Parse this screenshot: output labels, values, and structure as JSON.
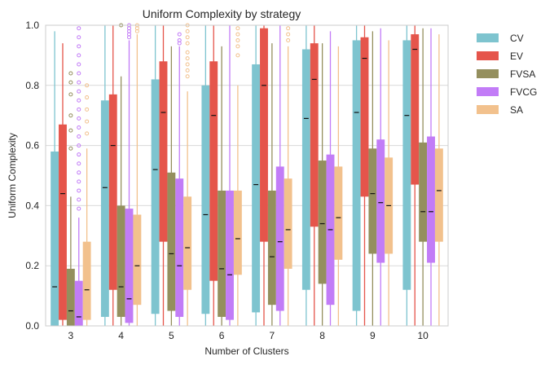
{
  "chart_data": {
    "type": "box",
    "title": "Uniform Complexity by strategy",
    "xlabel": "Number of Clusters",
    "ylabel": "Uniform Complexity",
    "ylim": [
      0,
      1
    ],
    "yticks": [
      "0.0",
      "0.2",
      "0.4",
      "0.6",
      "0.8",
      "1.0"
    ],
    "grid": true,
    "legend_position": "outside-right-top",
    "categories": [
      "3",
      "4",
      "5",
      "6",
      "7",
      "8",
      "9",
      "10"
    ],
    "series": [
      {
        "name": "CV",
        "color": "#7ec4cf",
        "boxes": [
          {
            "q1": 0.0,
            "median": 0.13,
            "q3": 0.58,
            "wlo": 0.0,
            "whi": 0.98,
            "outliers": []
          },
          {
            "q1": 0.03,
            "median": 0.46,
            "q3": 0.75,
            "wlo": 0.0,
            "whi": 1.0,
            "outliers": []
          },
          {
            "q1": 0.04,
            "median": 0.52,
            "q3": 0.82,
            "wlo": 0.0,
            "whi": 1.0,
            "outliers": []
          },
          {
            "q1": 0.04,
            "median": 0.37,
            "q3": 0.8,
            "wlo": 0.0,
            "whi": 1.0,
            "outliers": []
          },
          {
            "q1": 0.045,
            "median": 0.47,
            "q3": 0.87,
            "wlo": 0.0,
            "whi": 1.0,
            "outliers": []
          },
          {
            "q1": 0.12,
            "median": 0.69,
            "q3": 0.92,
            "wlo": 0.0,
            "whi": 1.0,
            "outliers": []
          },
          {
            "q1": 0.05,
            "median": 0.71,
            "q3": 0.95,
            "wlo": 0.0,
            "whi": 1.0,
            "outliers": []
          },
          {
            "q1": 0.12,
            "median": 0.7,
            "q3": 0.95,
            "wlo": 0.0,
            "whi": 1.0,
            "outliers": []
          }
        ]
      },
      {
        "name": "EV",
        "color": "#e5554b",
        "boxes": [
          {
            "q1": 0.02,
            "median": 0.44,
            "q3": 0.67,
            "wlo": 0.0,
            "whi": 0.94,
            "outliers": []
          },
          {
            "q1": 0.12,
            "median": 0.6,
            "q3": 0.77,
            "wlo": 0.0,
            "whi": 1.0,
            "outliers": []
          },
          {
            "q1": 0.28,
            "median": 0.71,
            "q3": 0.88,
            "wlo": 0.0,
            "whi": 1.0,
            "outliers": []
          },
          {
            "q1": 0.15,
            "median": 0.7,
            "q3": 0.88,
            "wlo": 0.0,
            "whi": 1.0,
            "outliers": []
          },
          {
            "q1": 0.28,
            "median": 0.8,
            "q3": 0.99,
            "wlo": 0.0,
            "whi": 1.0,
            "outliers": []
          },
          {
            "q1": 0.33,
            "median": 0.82,
            "q3": 0.94,
            "wlo": 0.0,
            "whi": 1.0,
            "outliers": []
          },
          {
            "q1": 0.43,
            "median": 0.89,
            "q3": 0.96,
            "wlo": 0.0,
            "whi": 1.0,
            "outliers": []
          },
          {
            "q1": 0.47,
            "median": 0.92,
            "q3": 0.97,
            "wlo": 0.0,
            "whi": 1.0,
            "outliers": []
          }
        ]
      },
      {
        "name": "FVSA",
        "color": "#948f5e",
        "boxes": [
          {
            "q1": 0.0,
            "median": 0.05,
            "q3": 0.19,
            "wlo": 0.0,
            "whi": 0.43,
            "outliers": [
              0.59,
              0.65,
              0.7,
              0.77,
              0.81,
              0.84
            ]
          },
          {
            "q1": 0.03,
            "median": 0.13,
            "q3": 0.4,
            "wlo": 0.0,
            "whi": 0.83,
            "outliers": [
              1.0
            ]
          },
          {
            "q1": 0.05,
            "median": 0.24,
            "q3": 0.51,
            "wlo": 0.0,
            "whi": 0.93,
            "outliers": []
          },
          {
            "q1": 0.03,
            "median": 0.19,
            "q3": 0.45,
            "wlo": 0.0,
            "whi": 0.93,
            "outliers": []
          },
          {
            "q1": 0.07,
            "median": 0.23,
            "q3": 0.45,
            "wlo": 0.0,
            "whi": 0.94,
            "outliers": []
          },
          {
            "q1": 0.14,
            "median": 0.34,
            "q3": 0.55,
            "wlo": 0.0,
            "whi": 0.94,
            "outliers": []
          },
          {
            "q1": 0.24,
            "median": 0.44,
            "q3": 0.59,
            "wlo": 0.0,
            "whi": 0.98,
            "outliers": []
          },
          {
            "q1": 0.28,
            "median": 0.38,
            "q3": 0.61,
            "wlo": 0.0,
            "whi": 0.99,
            "outliers": []
          }
        ]
      },
      {
        "name": "FVCG",
        "color": "#c27cf7",
        "boxes": [
          {
            "q1": 0.0,
            "median": 0.03,
            "q3": 0.15,
            "wlo": 0.0,
            "whi": 0.36,
            "outliers": [
              0.39,
              0.42,
              0.45,
              0.48,
              0.51,
              0.54,
              0.57,
              0.6,
              0.63,
              0.66,
              0.69,
              0.72,
              0.75,
              0.78,
              0.81,
              0.84,
              0.87,
              0.9,
              0.93,
              0.96,
              0.99
            ]
          },
          {
            "q1": 0.01,
            "median": 0.09,
            "q3": 0.39,
            "wlo": 0.0,
            "whi": 0.95,
            "outliers": [
              0.96,
              0.97,
              0.98,
              0.99,
              1.0
            ]
          },
          {
            "q1": 0.03,
            "median": 0.2,
            "q3": 0.49,
            "wlo": 0.0,
            "whi": 0.93,
            "outliers": [
              0.94,
              0.95,
              0.97
            ]
          },
          {
            "q1": 0.02,
            "median": 0.17,
            "q3": 0.45,
            "wlo": 0.0,
            "whi": 1.0,
            "outliers": []
          },
          {
            "q1": 0.05,
            "median": 0.28,
            "q3": 0.53,
            "wlo": 0.0,
            "whi": 1.0,
            "outliers": []
          },
          {
            "q1": 0.07,
            "median": 0.32,
            "q3": 0.57,
            "wlo": 0.0,
            "whi": 0.98,
            "outliers": []
          },
          {
            "q1": 0.21,
            "median": 0.41,
            "q3": 0.62,
            "wlo": 0.0,
            "whi": 0.99,
            "outliers": []
          },
          {
            "q1": 0.21,
            "median": 0.38,
            "q3": 0.63,
            "wlo": 0.0,
            "whi": 0.99,
            "outliers": []
          }
        ]
      },
      {
        "name": "SA",
        "color": "#f2c18d",
        "boxes": [
          {
            "q1": 0.02,
            "median": 0.12,
            "q3": 0.28,
            "wlo": 0.0,
            "whi": 0.59,
            "outliers": [
              0.64,
              0.68,
              0.72,
              0.76,
              0.8
            ]
          },
          {
            "q1": 0.07,
            "median": 0.2,
            "q3": 0.37,
            "wlo": 0.0,
            "whi": 0.97,
            "outliers": [
              0.98,
              0.99,
              1.0
            ]
          },
          {
            "q1": 0.12,
            "median": 0.26,
            "q3": 0.43,
            "wlo": 0.0,
            "whi": 0.78,
            "outliers": [
              0.83,
              0.85,
              0.87,
              0.89,
              0.91,
              0.94,
              0.96,
              0.98,
              1.0
            ]
          },
          {
            "q1": 0.17,
            "median": 0.29,
            "q3": 0.45,
            "wlo": 0.0,
            "whi": 0.8,
            "outliers": [
              0.9,
              0.93,
              0.95,
              0.97,
              0.99
            ]
          },
          {
            "q1": 0.19,
            "median": 0.32,
            "q3": 0.49,
            "wlo": 0.0,
            "whi": 0.93,
            "outliers": [
              0.95,
              0.97,
              0.99
            ]
          },
          {
            "q1": 0.22,
            "median": 0.36,
            "q3": 0.53,
            "wlo": 0.0,
            "whi": 0.93,
            "outliers": []
          },
          {
            "q1": 0.24,
            "median": 0.4,
            "q3": 0.56,
            "wlo": 0.0,
            "whi": 0.95,
            "outliers": []
          },
          {
            "q1": 0.28,
            "median": 0.45,
            "q3": 0.59,
            "wlo": 0.0,
            "whi": 0.97,
            "outliers": []
          }
        ]
      }
    ]
  }
}
